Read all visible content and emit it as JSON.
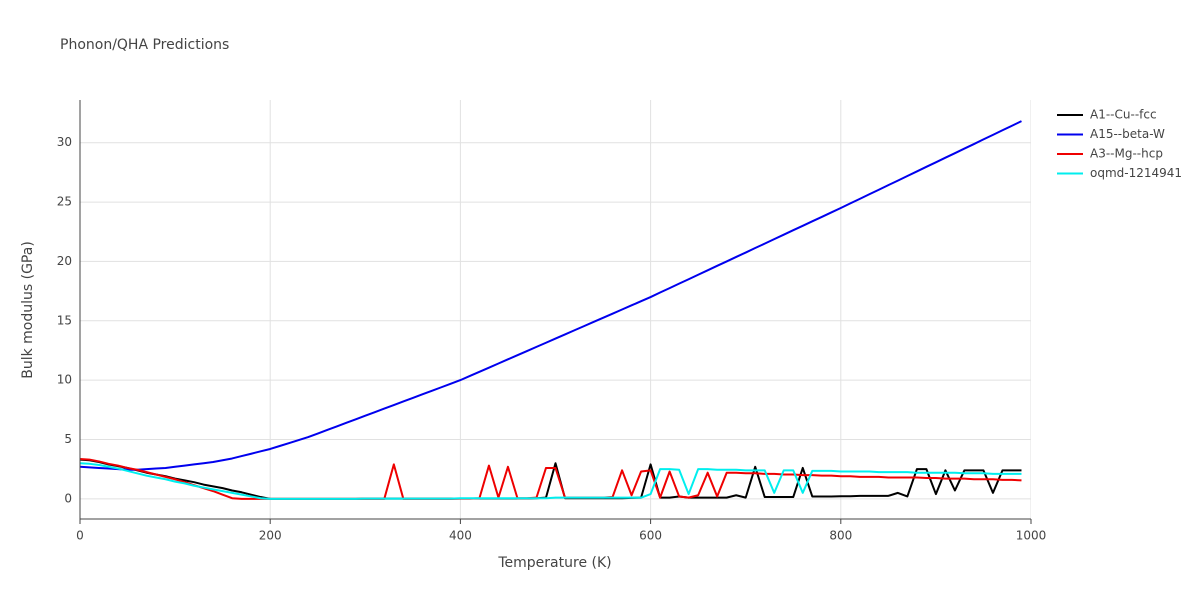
{
  "chart_data": {
    "type": "line",
    "title": "Phonon/QHA Predictions",
    "x_label": "Temperature (K)",
    "y_label": "Bulk modulus (GPa)",
    "x": [
      0,
      10,
      20,
      30,
      40,
      50,
      60,
      70,
      80,
      90,
      100,
      110,
      120,
      130,
      140,
      150,
      160,
      170,
      180,
      190,
      200,
      210,
      220,
      230,
      240,
      250,
      260,
      270,
      280,
      290,
      300,
      310,
      320,
      330,
      340,
      350,
      360,
      370,
      380,
      390,
      400,
      410,
      420,
      430,
      440,
      450,
      460,
      470,
      480,
      490,
      500,
      510,
      520,
      530,
      540,
      550,
      560,
      570,
      580,
      590,
      600,
      610,
      620,
      630,
      640,
      650,
      660,
      670,
      680,
      690,
      700,
      710,
      720,
      730,
      740,
      750,
      760,
      770,
      780,
      790,
      800,
      810,
      820,
      830,
      840,
      850,
      860,
      870,
      880,
      890,
      900,
      910,
      920,
      930,
      940,
      950,
      960,
      970,
      980,
      990
    ],
    "series": [
      {
        "name": "A1--Cu--fcc",
        "color": "#000000",
        "values": [
          3.3,
          3.25,
          3.1,
          2.9,
          2.75,
          2.6,
          2.4,
          2.2,
          2.05,
          1.9,
          1.7,
          1.55,
          1.4,
          1.2,
          1.05,
          0.9,
          0.7,
          0.55,
          0.35,
          0.15,
          0,
          0,
          0,
          0,
          0,
          0,
          0,
          0,
          0,
          0,
          0.02,
          0.02,
          0.02,
          0.02,
          0.02,
          0.02,
          0.02,
          0.02,
          0.02,
          0.02,
          0.03,
          0.03,
          0.03,
          0.03,
          0.03,
          0.03,
          0.03,
          0.03,
          0.05,
          0.1,
          3.0,
          0.05,
          0.05,
          0.05,
          0.05,
          0.05,
          0.05,
          0.05,
          0.08,
          0.1,
          2.9,
          0.1,
          0.1,
          0.2,
          0.1,
          0.1,
          0.1,
          0.1,
          0.1,
          0.3,
          0.1,
          2.7,
          0.15,
          0.15,
          0.15,
          0.15,
          2.6,
          0.2,
          0.2,
          0.2,
          0.22,
          0.22,
          0.25,
          0.25,
          0.25,
          0.25,
          0.5,
          0.2,
          2.5,
          2.5,
          0.4,
          2.4,
          0.7,
          2.4,
          2.4,
          2.4,
          0.5,
          2.4,
          2.4,
          2.4
        ]
      },
      {
        "name": "A15--beta-W",
        "color": "#0000ee",
        "values": [
          2.7,
          2.65,
          2.6,
          2.55,
          2.5,
          2.45,
          2.45,
          2.5,
          2.55,
          2.6,
          2.7,
          2.8,
          2.9,
          3.0,
          3.1,
          3.25,
          3.4,
          3.6,
          3.8,
          4.0,
          4.2,
          4.45,
          4.7,
          4.95,
          5.2,
          5.5,
          5.8,
          6.1,
          6.4,
          6.7,
          7.0,
          7.3,
          7.6,
          7.9,
          8.2,
          8.5,
          8.8,
          9.1,
          9.4,
          9.7,
          10.0,
          10.35,
          10.7,
          11.05,
          11.4,
          11.75,
          12.1,
          12.45,
          12.8,
          13.15,
          13.5,
          13.85,
          14.2,
          14.55,
          14.9,
          15.25,
          15.6,
          15.95,
          16.3,
          16.65,
          17.0,
          17.38,
          17.75,
          18.13,
          18.5,
          18.88,
          19.25,
          19.63,
          20.0,
          20.38,
          20.75,
          21.13,
          21.5,
          21.88,
          22.25,
          22.63,
          23.0,
          23.38,
          23.75,
          24.13,
          24.5,
          24.89,
          25.27,
          25.66,
          26.04,
          26.43,
          26.81,
          27.2,
          27.58,
          27.97,
          28.35,
          28.74,
          29.12,
          29.51,
          29.89,
          30.28,
          30.66,
          31.05,
          31.43,
          31.82
        ]
      },
      {
        "name": "A3--Mg--hcp",
        "color": "#ee0000",
        "values": [
          3.35,
          3.3,
          3.15,
          2.95,
          2.8,
          2.6,
          2.45,
          2.25,
          2.05,
          1.85,
          1.65,
          1.4,
          1.15,
          0.9,
          0.65,
          0.35,
          0.05,
          0,
          0,
          0,
          0,
          0,
          0,
          0,
          0,
          0,
          0,
          0,
          0,
          0,
          0,
          0,
          0,
          2.9,
          0,
          0,
          0,
          0,
          0,
          0,
          0.02,
          0.02,
          0.05,
          2.8,
          0.1,
          2.7,
          0.05,
          0.05,
          0.1,
          2.6,
          2.6,
          0.1,
          0.1,
          0.1,
          0.1,
          0.1,
          0.15,
          2.4,
          0.3,
          2.3,
          2.4,
          0.1,
          2.3,
          0.2,
          0.1,
          0.3,
          2.2,
          0.2,
          2.2,
          2.2,
          2.15,
          2.15,
          2.1,
          2.1,
          2.05,
          2.05,
          2.0,
          2.0,
          1.95,
          1.95,
          1.9,
          1.9,
          1.85,
          1.85,
          1.85,
          1.8,
          1.8,
          1.8,
          1.8,
          1.75,
          1.75,
          1.7,
          1.7,
          1.7,
          1.65,
          1.65,
          1.65,
          1.6,
          1.6,
          1.55
        ]
      },
      {
        "name": "oqmd-1214941",
        "color": "#00eeee",
        "values": [
          3.0,
          2.95,
          2.85,
          2.7,
          2.55,
          2.35,
          2.15,
          1.95,
          1.8,
          1.65,
          1.45,
          1.3,
          1.1,
          0.95,
          0.8,
          0.65,
          0.5,
          0.35,
          0.2,
          0.05,
          0,
          0,
          0,
          0,
          0,
          0,
          0,
          0,
          0,
          0,
          0.02,
          0.02,
          0.02,
          0.02,
          0.02,
          0.02,
          0.02,
          0.02,
          0.02,
          0.02,
          0.05,
          0.05,
          0.05,
          0.05,
          0.05,
          0.05,
          0.05,
          0.05,
          0.05,
          0.05,
          0.1,
          0.1,
          0.1,
          0.1,
          0.1,
          0.1,
          0.1,
          0.1,
          0.1,
          0.1,
          0.4,
          2.5,
          2.5,
          2.45,
          0.4,
          2.5,
          2.5,
          2.45,
          2.45,
          2.45,
          2.4,
          2.4,
          2.4,
          0.5,
          2.4,
          2.4,
          0.5,
          2.35,
          2.35,
          2.35,
          2.3,
          2.3,
          2.3,
          2.3,
          2.25,
          2.25,
          2.25,
          2.25,
          2.2,
          2.2,
          2.2,
          2.2,
          2.2,
          2.15,
          2.15,
          2.15,
          2.1,
          2.1,
          2.1,
          2.1
        ]
      }
    ],
    "xlim": [
      0,
      1000
    ],
    "xticks": [
      0,
      200,
      400,
      600,
      800,
      1000
    ],
    "ylim": [
      -1.7,
      33.6
    ],
    "yticks": [
      0,
      5,
      10,
      15,
      20,
      25,
      30
    ],
    "grid": true,
    "legend": "outside-right"
  }
}
